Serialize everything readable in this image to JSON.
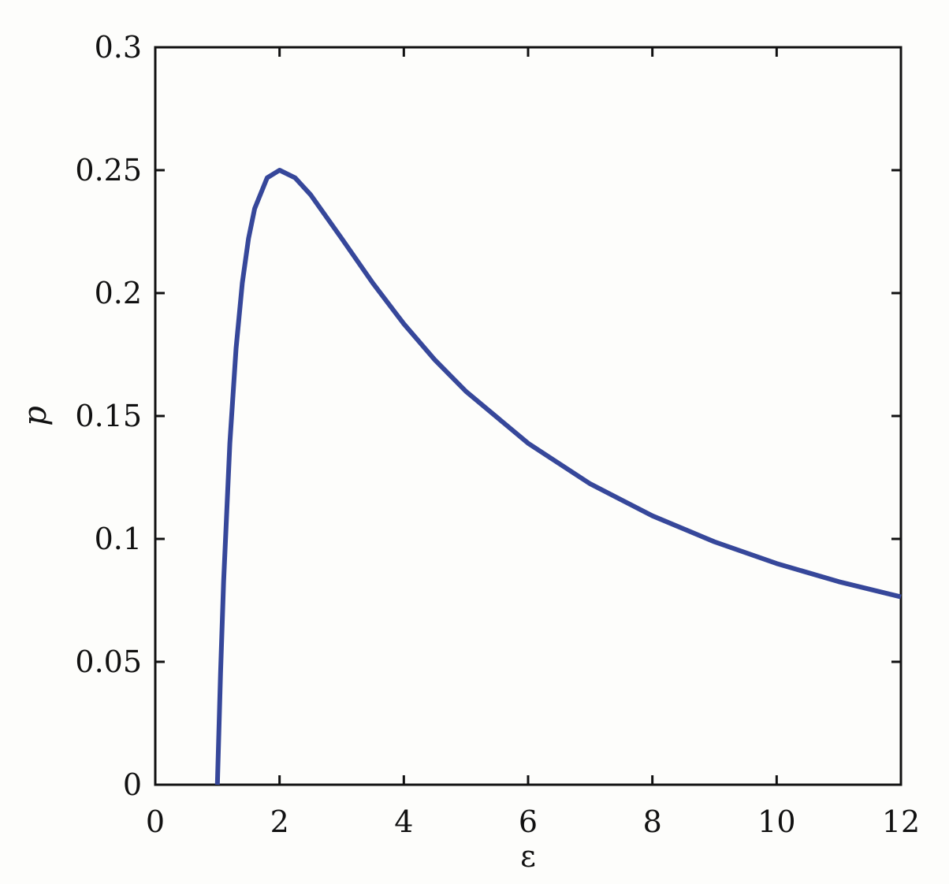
{
  "chart_data": {
    "type": "line",
    "title": "",
    "xlabel": "ε",
    "ylabel": "p",
    "xlim": [
      0,
      12
    ],
    "ylim": [
      0,
      0.3
    ],
    "xticks": [
      "0",
      "2",
      "4",
      "6",
      "8",
      "10",
      "12"
    ],
    "yticks": [
      "0",
      "0.05",
      "0.1",
      "0.15",
      "0.2",
      "0.25",
      "0.3"
    ],
    "grid": false,
    "series": [
      {
        "color": "#36479a",
        "x": [
          1,
          1.05,
          1.1,
          1.2,
          1.3,
          1.4,
          1.5,
          1.6,
          1.8,
          2,
          2.25,
          2.5,
          3,
          3.5,
          4,
          4.5,
          5,
          6,
          7,
          8,
          9,
          10,
          11,
          12
        ],
        "y": [
          0,
          0.0454,
          0.0826,
          0.1389,
          0.1775,
          0.2041,
          0.2222,
          0.2344,
          0.2469,
          0.25,
          0.2469,
          0.24,
          0.2222,
          0.2041,
          0.1875,
          0.1728,
          0.16,
          0.1389,
          0.1224,
          0.1094,
          0.0988,
          0.09,
          0.0826,
          0.0764
        ]
      }
    ]
  }
}
